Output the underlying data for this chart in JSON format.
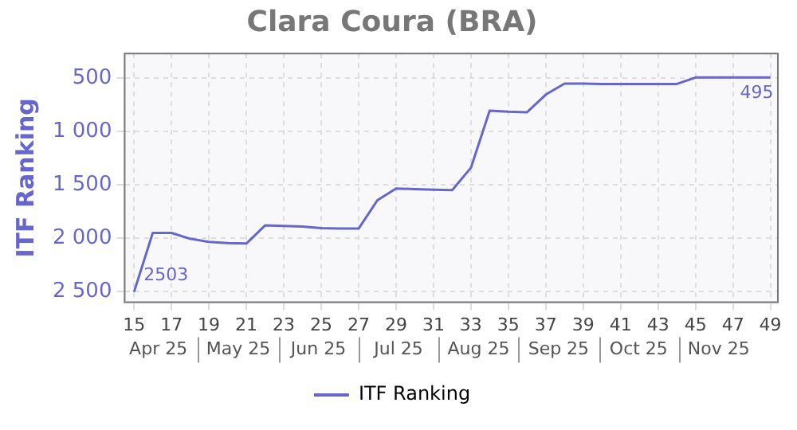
{
  "chart_data": {
    "type": "line",
    "title": "Clara Coura (BRA)",
    "ylabel": "ITF Ranking",
    "x": [
      15,
      16,
      17,
      18,
      19,
      20,
      21,
      22,
      23,
      24,
      25,
      26,
      27,
      28,
      29,
      30,
      31,
      32,
      33,
      34,
      35,
      36,
      37,
      38,
      39,
      40,
      41,
      42,
      43,
      44,
      45,
      46,
      47,
      48,
      49
    ],
    "series": [
      {
        "name": "ITF Ranking",
        "color": "#6666cc",
        "values": [
          2503,
          1950,
          1950,
          2005,
          2035,
          2045,
          2050,
          1880,
          1885,
          1890,
          1905,
          1910,
          1910,
          1645,
          1535,
          1540,
          1545,
          1550,
          1340,
          805,
          815,
          820,
          655,
          552,
          552,
          555,
          555,
          555,
          555,
          555,
          495,
          495,
          495,
          495,
          495
        ],
        "value_labels": [
          "2503",
          null,
          null,
          null,
          null,
          null,
          null,
          null,
          null,
          null,
          null,
          null,
          null,
          null,
          null,
          null,
          null,
          null,
          null,
          null,
          null,
          null,
          null,
          null,
          null,
          null,
          null,
          null,
          null,
          null,
          null,
          null,
          null,
          null,
          "495"
        ]
      }
    ],
    "xlim": [
      14.5,
      49.4
    ],
    "xticks": [
      15,
      17,
      19,
      21,
      23,
      25,
      27,
      29,
      31,
      33,
      35,
      37,
      39,
      41,
      43,
      45,
      47,
      49
    ],
    "ylim": [
      2600,
      270
    ],
    "yticks": [
      {
        "value": 500,
        "label": "500"
      },
      {
        "value": 1000,
        "label": "1 000"
      },
      {
        "value": 1500,
        "label": "1 500"
      },
      {
        "value": 2000,
        "label": "2 000"
      },
      {
        "value": 2500,
        "label": "2 500"
      }
    ],
    "annotations": [
      "Apr 25",
      "May 25",
      "Jun 25",
      "Jul 25",
      "Aug 25",
      "Sep 25",
      "Oct 25",
      "Nov 25"
    ],
    "grid": true,
    "legend": "bottom",
    "marker": "none",
    "line_style": "solid"
  }
}
